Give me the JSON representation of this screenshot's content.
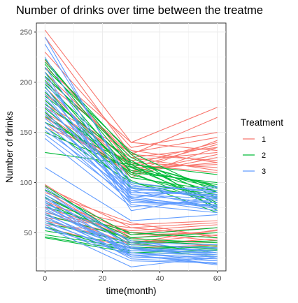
{
  "chart_data": {
    "type": "line",
    "title": "Number of drinks over time between the treatme",
    "xlabel": "time(month)",
    "ylabel": "Number of drinks",
    "xlim": [
      -3,
      63
    ],
    "ylim": [
      12,
      259
    ],
    "x_ticks": [
      0,
      20,
      40,
      60
    ],
    "y_ticks": [
      50,
      100,
      150,
      200,
      250
    ],
    "x": [
      0,
      30,
      60
    ],
    "grid": true,
    "legend": {
      "title": "Treatment",
      "position": "right"
    },
    "groups": [
      {
        "name": "1",
        "color": "#F8766D",
        "subjects": [
          [
            252,
            140,
            175
          ],
          [
            245,
            128,
            165
          ],
          [
            230,
            135,
            150
          ],
          [
            222,
            118,
            140
          ],
          [
            210,
            125,
            135
          ],
          [
            200,
            132,
            120
          ],
          [
            195,
            110,
            128
          ],
          [
            188,
            120,
            115
          ],
          [
            182,
            105,
            135
          ],
          [
            178,
            130,
            145
          ],
          [
            170,
            118,
            110
          ],
          [
            165,
            108,
            125
          ],
          [
            160,
            112,
            120
          ],
          [
            155,
            122,
            130
          ],
          [
            150,
            115,
            118
          ],
          [
            205,
            128,
            122
          ],
          [
            215,
            140,
            132
          ],
          [
            190,
            115,
            138
          ],
          [
            175,
            125,
            112
          ],
          [
            168,
            110,
            142
          ],
          [
            98,
            45,
            52
          ],
          [
            96,
            55,
            60
          ],
          [
            92,
            40,
            48
          ],
          [
            90,
            60,
            45
          ],
          [
            85,
            50,
            55
          ],
          [
            82,
            42,
            40
          ],
          [
            78,
            58,
            62
          ],
          [
            75,
            48,
            50
          ],
          [
            72,
            38,
            44
          ],
          [
            70,
            52,
            58
          ],
          [
            68,
            45,
            36
          ],
          [
            65,
            55,
            47
          ],
          [
            62,
            40,
            53
          ],
          [
            58,
            50,
            42
          ],
          [
            55,
            35,
            38
          ]
        ]
      },
      {
        "name": "2",
        "color": "#00BA38",
        "subjects": [
          [
            223,
            120,
            95
          ],
          [
            218,
            115,
            80
          ],
          [
            214,
            130,
            90
          ],
          [
            210,
            110,
            100
          ],
          [
            206,
            125,
            85
          ],
          [
            202,
            105,
            92
          ],
          [
            198,
            118,
            75
          ],
          [
            195,
            100,
            88
          ],
          [
            190,
            112,
            98
          ],
          [
            186,
            122,
            78
          ],
          [
            182,
            108,
            84
          ],
          [
            178,
            116,
            94
          ],
          [
            174,
            102,
            70
          ],
          [
            170,
            95,
            86
          ],
          [
            166,
            110,
            76
          ],
          [
            160,
            120,
            96
          ],
          [
            155,
            100,
            82
          ],
          [
            150,
            115,
            90
          ],
          [
            130,
            118,
            108
          ],
          [
            220,
            128,
            72
          ],
          [
            97,
            40,
            42
          ],
          [
            93,
            48,
            55
          ],
          [
            88,
            38,
            35
          ],
          [
            85,
            45,
            50
          ],
          [
            80,
            42,
            38
          ],
          [
            76,
            50,
            45
          ],
          [
            72,
            36,
            32
          ],
          [
            68,
            44,
            40
          ],
          [
            64,
            34,
            37
          ],
          [
            60,
            40,
            30
          ],
          [
            56,
            30,
            28
          ],
          [
            52,
            38,
            34
          ],
          [
            48,
            35,
            26
          ],
          [
            46,
            32,
            30
          ],
          [
            45,
            30,
            33
          ]
        ]
      },
      {
        "name": "3",
        "color": "#619CFF",
        "subjects": [
          [
            245,
            95,
            85
          ],
          [
            238,
            100,
            90
          ],
          [
            225,
            88,
            80
          ],
          [
            215,
            92,
            75
          ],
          [
            205,
            85,
            95
          ],
          [
            200,
            98,
            82
          ],
          [
            196,
            80,
            78
          ],
          [
            192,
            90,
            88
          ],
          [
            188,
            84,
            72
          ],
          [
            184,
            96,
            92
          ],
          [
            180,
            82,
            76
          ],
          [
            176,
            94,
            86
          ],
          [
            172,
            78,
            70
          ],
          [
            168,
            88,
            84
          ],
          [
            164,
            92,
            96
          ],
          [
            160,
            86,
            74
          ],
          [
            156,
            80,
            80
          ],
          [
            152,
            90,
            90
          ],
          [
            148,
            84,
            77
          ],
          [
            144,
            76,
            83
          ],
          [
            115,
            62,
            68
          ],
          [
            210,
            72,
            87
          ],
          [
            95,
            40,
            38
          ],
          [
            92,
            35,
            32
          ],
          [
            88,
            42,
            30
          ],
          [
            86,
            30,
            28
          ],
          [
            84,
            38,
            35
          ],
          [
            82,
            26,
            22
          ],
          [
            80,
            34,
            30
          ],
          [
            78,
            28,
            26
          ],
          [
            76,
            32,
            34
          ],
          [
            74,
            30,
            24
          ],
          [
            72,
            36,
            28
          ],
          [
            70,
            24,
            20
          ],
          [
            68,
            32,
            30
          ],
          [
            66,
            28,
            18
          ],
          [
            64,
            34,
            26
          ],
          [
            62,
            26,
            24
          ],
          [
            60,
            30,
            22
          ],
          [
            58,
            22,
            20
          ],
          [
            56,
            16,
            26
          ],
          [
            55,
            28,
            19
          ]
        ]
      }
    ]
  }
}
